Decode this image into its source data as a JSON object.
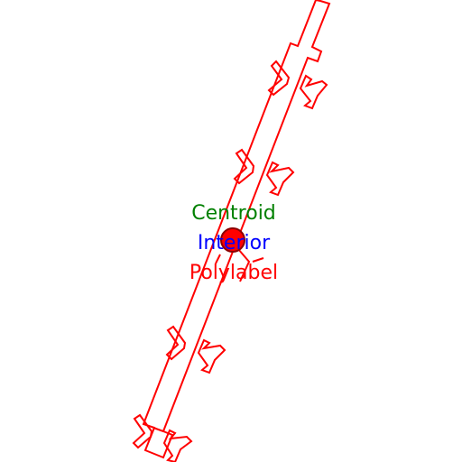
{
  "labels": {
    "centroid": "Centroid",
    "interior": "Interior",
    "polylabel": "Polylabel"
  },
  "colors": {
    "outline": "#ff0000",
    "centroid": "#008000",
    "interior": "#0000ff",
    "polylabel": "#ff0000",
    "marker_fill": "#ff0000",
    "marker_stroke": "#8b0000",
    "background": "#ffffff"
  }
}
